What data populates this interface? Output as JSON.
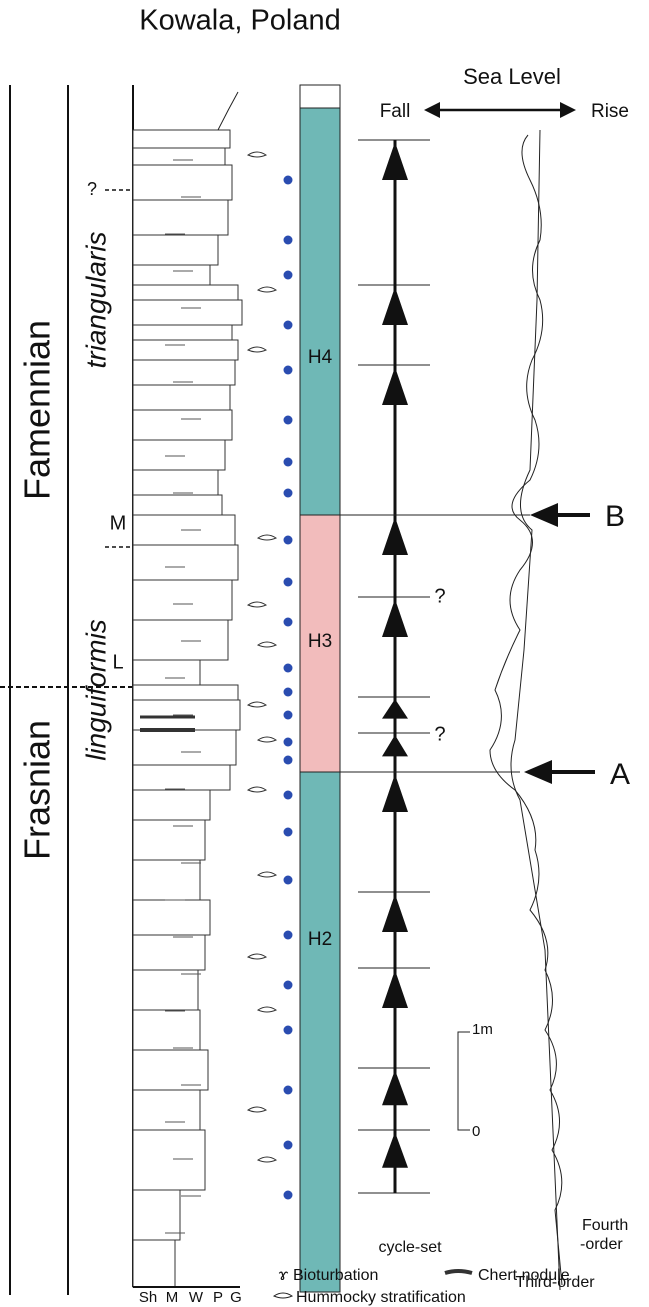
{
  "title": "Kowala, Poland",
  "sea_level": {
    "label": "Sea Level",
    "fall": "Fall",
    "rise": "Rise"
  },
  "stages": {
    "upper": "Famennian",
    "lower": "Frasnian"
  },
  "zones": {
    "upper": "triangularis",
    "lower": "linguiformis"
  },
  "zone_markers": {
    "query": "?",
    "m": "M",
    "l": "L"
  },
  "horizons": {
    "h4": "H4",
    "h3": "H3",
    "h2": "H2"
  },
  "cycle_queries": [
    "?",
    "?"
  ],
  "events": {
    "b": "B",
    "a": "A"
  },
  "scale": {
    "top": "1m",
    "bottom": "0"
  },
  "cycle_label": "cycle-set",
  "curves": {
    "fourth": [
      "Fourth",
      "-order"
    ],
    "third": "Third-order"
  },
  "grain_sizes": [
    "Sh",
    "M",
    "W",
    "P",
    "G"
  ],
  "legend": {
    "bioturbation": "Bioturbation",
    "chert": "Chert nodule",
    "hummocky": "Hummocky stratification"
  }
}
